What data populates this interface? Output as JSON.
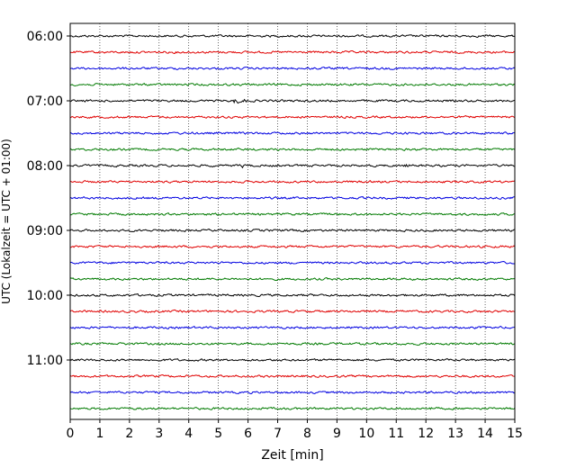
{
  "chart_data": {
    "type": "line",
    "title": "",
    "xlabel": "Zeit  [min]",
    "ylabel": "UTC (Lokalzeit = UTC + 01:00)",
    "xlim": [
      0,
      15
    ],
    "x_ticks": [
      "0",
      "1",
      "2",
      "3",
      "4",
      "5",
      "6",
      "7",
      "8",
      "9",
      "10",
      "11",
      "12",
      "13",
      "14",
      "15"
    ],
    "y_ticks": [
      "06:00",
      "07:00",
      "08:00",
      "09:00",
      "10:00",
      "11:00"
    ],
    "grid": "vertical dotted lines at each minute",
    "line_start_time": "06:00",
    "line_interval_minutes": 15,
    "line_count": 24,
    "colors": [
      "#000000",
      "#e00000",
      "#0000e0",
      "#007a00"
    ],
    "events": [
      {
        "line": 4,
        "x_min": 5.5,
        "relative_amplitude": 3.5
      },
      {
        "line": 4,
        "x_min": 5.8,
        "relative_amplitude": 2.5
      },
      {
        "line": 8,
        "x_min": 5.8,
        "relative_amplitude": 2.0
      },
      {
        "line": 8,
        "x_min": 11.3,
        "relative_amplitude": 2.0
      },
      {
        "line": 23,
        "x_min": 12.1,
        "relative_amplitude": 1.8
      }
    ]
  }
}
